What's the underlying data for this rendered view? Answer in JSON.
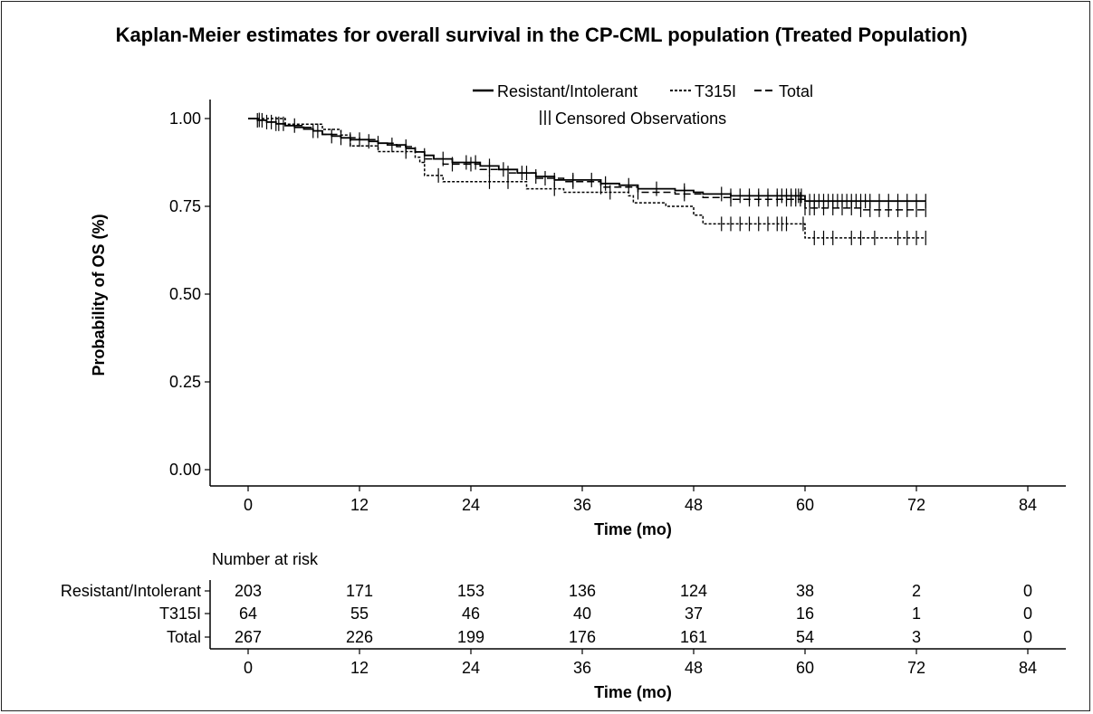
{
  "chart_data": {
    "type": "line",
    "title": "Kaplan-Meier estimates for overall survival in the CP-CML population (Treated Population)",
    "xlabel": "Time (mo)",
    "ylabel": "Probability of OS (%)",
    "xlim": [
      0,
      84
    ],
    "ylim": [
      0,
      1
    ],
    "x_ticks": [
      "0",
      "12",
      "24",
      "36",
      "48",
      "60",
      "72",
      "84"
    ],
    "y_ticks": [
      "0.00",
      "0.25",
      "0.50",
      "0.75",
      "1.00"
    ],
    "legend": {
      "position": "top",
      "items": [
        "Resistant/Intolerant",
        "T315I",
        "Total"
      ],
      "censor_label": "Censored Observations"
    },
    "series": [
      {
        "name": "Resistant/Intolerant",
        "style": "solid",
        "steps": [
          [
            0,
            1.0
          ],
          [
            1,
            0.995
          ],
          [
            2,
            0.99
          ],
          [
            3,
            0.985
          ],
          [
            4,
            0.98
          ],
          [
            5,
            0.975
          ],
          [
            6,
            0.97
          ],
          [
            7,
            0.965
          ],
          [
            8,
            0.955
          ],
          [
            9,
            0.95
          ],
          [
            10,
            0.945
          ],
          [
            11,
            0.94
          ],
          [
            13,
            0.935
          ],
          [
            14,
            0.93
          ],
          [
            15,
            0.925
          ],
          [
            17,
            0.915
          ],
          [
            18,
            0.905
          ],
          [
            19,
            0.895
          ],
          [
            20,
            0.885
          ],
          [
            22,
            0.875
          ],
          [
            25,
            0.865
          ],
          [
            27,
            0.855
          ],
          [
            29,
            0.845
          ],
          [
            31,
            0.835
          ],
          [
            33,
            0.825
          ],
          [
            38,
            0.815
          ],
          [
            40,
            0.81
          ],
          [
            42,
            0.8
          ],
          [
            46,
            0.795
          ],
          [
            48,
            0.79
          ],
          [
            49,
            0.785
          ],
          [
            52,
            0.78
          ],
          [
            60,
            0.765
          ],
          [
            73,
            0.765
          ]
        ],
        "censored": [
          1,
          1.5,
          2.5,
          3.3,
          3.8,
          7.5,
          9,
          11,
          13,
          15.5,
          19,
          21,
          23.5,
          24.5,
          26,
          27.5,
          29.5,
          31,
          33,
          35,
          37,
          38.5,
          41,
          44,
          47,
          51,
          52,
          53,
          54,
          55,
          56,
          57,
          57.5,
          58,
          58.5,
          59,
          59.3,
          59.6,
          60.5,
          61,
          61.5,
          62,
          62.5,
          63,
          63.5,
          64,
          64.5,
          65,
          65.5,
          66,
          66.5,
          67,
          68,
          69,
          70,
          71,
          72,
          73
        ]
      },
      {
        "name": "T315I",
        "style": "dotted",
        "steps": [
          [
            0,
            1.0
          ],
          [
            4,
            0.984
          ],
          [
            8,
            0.969
          ],
          [
            10,
            0.953
          ],
          [
            11,
            0.922
          ],
          [
            14,
            0.906
          ],
          [
            18,
            0.89
          ],
          [
            18.5,
            0.875
          ],
          [
            19,
            0.838
          ],
          [
            21,
            0.82
          ],
          [
            30,
            0.8
          ],
          [
            34,
            0.79
          ],
          [
            41,
            0.78
          ],
          [
            41.5,
            0.76
          ],
          [
            45,
            0.75
          ],
          [
            48,
            0.725
          ],
          [
            49,
            0.7
          ],
          [
            58,
            0.7
          ],
          [
            60,
            0.66
          ],
          [
            73,
            0.66
          ]
        ],
        "censored": [
          17,
          20.5,
          26,
          28,
          33,
          39,
          51,
          52,
          53,
          54,
          55,
          56,
          57,
          57.5,
          58,
          59.8,
          61,
          62,
          63,
          65,
          66,
          67.5,
          70,
          71,
          72,
          73
        ]
      },
      {
        "name": "Total",
        "style": "dashed",
        "steps": [
          [
            0,
            1.0
          ],
          [
            1,
            0.996
          ],
          [
            2,
            0.99
          ],
          [
            3,
            0.985
          ],
          [
            4,
            0.98
          ],
          [
            6,
            0.975
          ],
          [
            7,
            0.965
          ],
          [
            8,
            0.955
          ],
          [
            10,
            0.945
          ],
          [
            12,
            0.94
          ],
          [
            14,
            0.93
          ],
          [
            16,
            0.92
          ],
          [
            18,
            0.905
          ],
          [
            19,
            0.885
          ],
          [
            21,
            0.87
          ],
          [
            25,
            0.855
          ],
          [
            28,
            0.845
          ],
          [
            31,
            0.83
          ],
          [
            34,
            0.82
          ],
          [
            38,
            0.805
          ],
          [
            42,
            0.79
          ],
          [
            46,
            0.785
          ],
          [
            49,
            0.775
          ],
          [
            52,
            0.77
          ],
          [
            60,
            0.745
          ],
          [
            66,
            0.74
          ],
          [
            73,
            0.74
          ]
        ],
        "censored": [
          1.2,
          2,
          3,
          5,
          7,
          10,
          12,
          14,
          17,
          22,
          24,
          26,
          28,
          30,
          32,
          35,
          38,
          42,
          47,
          52,
          54,
          55,
          56,
          57,
          58,
          58.5,
          59,
          59.5,
          60,
          60.5,
          61,
          62,
          63,
          64,
          65,
          66,
          67,
          68,
          69,
          70,
          71,
          72,
          73
        ]
      }
    ],
    "risk_table": {
      "title": "Number at risk",
      "times": [
        "0",
        "12",
        "24",
        "36",
        "48",
        "60",
        "72",
        "84"
      ],
      "xlabel": "Time (mo)",
      "rows": [
        {
          "label": "Resistant/Intolerant",
          "values": [
            "203",
            "171",
            "153",
            "136",
            "124",
            "38",
            "2",
            "0"
          ]
        },
        {
          "label": "T315I",
          "values": [
            "64",
            "55",
            "46",
            "40",
            "37",
            "16",
            "1",
            "0"
          ]
        },
        {
          "label": "Total",
          "values": [
            "267",
            "226",
            "199",
            "176",
            "161",
            "54",
            "3",
            "0"
          ]
        }
      ]
    }
  }
}
